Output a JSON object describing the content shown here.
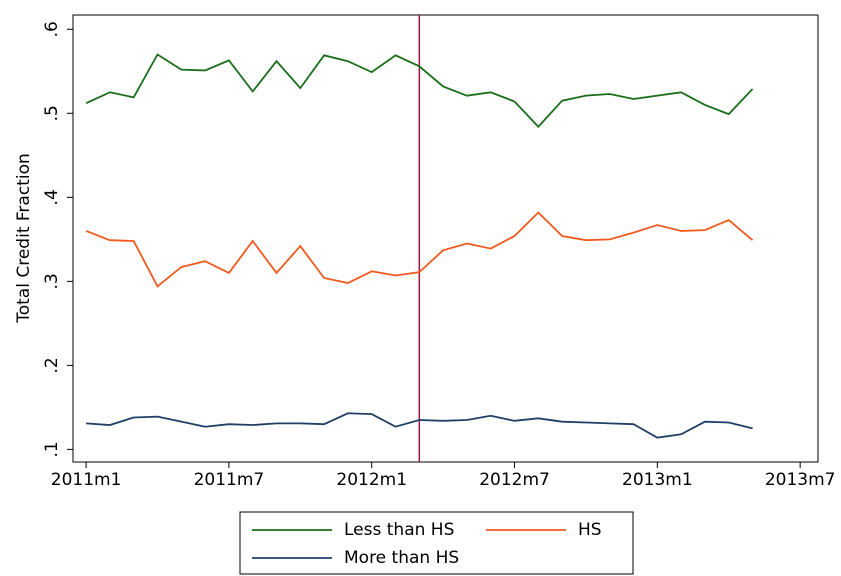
{
  "chart_data": {
    "type": "line",
    "y_label": "Total Credit Fraction",
    "x": [
      0,
      1,
      2,
      3,
      4,
      5,
      6,
      7,
      8,
      9,
      10,
      11,
      12,
      13,
      14,
      15,
      16,
      17,
      18,
      19,
      20,
      21,
      22,
      23,
      24,
      25,
      26,
      27,
      28
    ],
    "xlim": [
      -0.55,
      30.75
    ],
    "xticks": [
      {
        "value": 0,
        "label": "2011m1"
      },
      {
        "value": 6,
        "label": "2011m7"
      },
      {
        "value": 12,
        "label": "2012m1"
      },
      {
        "value": 18,
        "label": "2012m7"
      },
      {
        "value": 24,
        "label": "2013m1"
      },
      {
        "value": 30,
        "label": "2013m7"
      }
    ],
    "ylim": [
      0.085,
      0.617
    ],
    "yticks": [
      {
        "value": 0.1,
        "label": ".1"
      },
      {
        "value": 0.2,
        "label": ".2"
      },
      {
        "value": 0.3,
        "label": ".3"
      },
      {
        "value": 0.4,
        "label": ".4"
      },
      {
        "value": 0.5,
        "label": ".5"
      },
      {
        "value": 0.6,
        "label": ".6"
      }
    ],
    "vline": {
      "x": 14,
      "color": "#a0143c"
    },
    "series": [
      {
        "name": "Less than HS",
        "color": "#1a6e1a",
        "values": [
          0.512,
          0.525,
          0.519,
          0.57,
          0.552,
          0.551,
          0.563,
          0.526,
          0.562,
          0.53,
          0.569,
          0.562,
          0.549,
          0.569,
          0.556,
          0.532,
          0.521,
          0.525,
          0.514,
          0.484,
          0.515,
          0.521,
          0.523,
          0.517,
          0.521,
          0.525,
          0.51,
          0.499,
          0.529
        ]
      },
      {
        "name": "HS",
        "color": "#f05a1e",
        "values": [
          0.36,
          0.349,
          0.348,
          0.294,
          0.317,
          0.324,
          0.31,
          0.348,
          0.31,
          0.342,
          0.304,
          0.298,
          0.312,
          0.307,
          0.311,
          0.337,
          0.345,
          0.339,
          0.354,
          0.382,
          0.354,
          0.349,
          0.35,
          0.358,
          0.367,
          0.36,
          0.361,
          0.373,
          0.349
        ]
      },
      {
        "name": "More than HS",
        "color": "#1f3f66",
        "values": [
          0.131,
          0.129,
          0.138,
          0.139,
          0.133,
          0.127,
          0.13,
          0.129,
          0.131,
          0.131,
          0.13,
          0.143,
          0.142,
          0.127,
          0.135,
          0.134,
          0.135,
          0.14,
          0.134,
          0.137,
          0.133,
          0.132,
          0.131,
          0.13,
          0.114,
          0.118,
          0.133,
          0.132,
          0.125
        ]
      }
    ]
  }
}
